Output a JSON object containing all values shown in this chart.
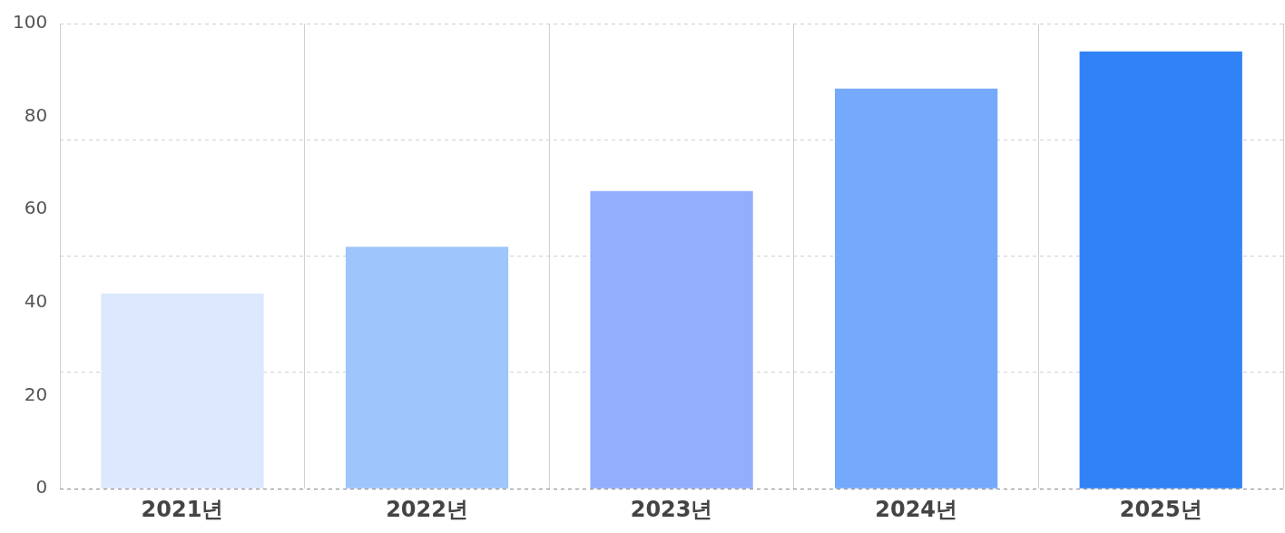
{
  "chart_data": {
    "type": "bar",
    "categories": [
      "2021년",
      "2022년",
      "2023년",
      "2024년",
      "2025년"
    ],
    "values": [
      42,
      52,
      64,
      86,
      94
    ],
    "colors": [
      "#dbe8fd",
      "#9ec5fc",
      "#93aefc",
      "#74a9fc",
      "#3182f6"
    ],
    "ylim": [
      0,
      100
    ],
    "yticks": [
      0,
      20,
      {
        "value": 25,
        "label": null
      },
      40,
      {
        "value": 50,
        "label": null
      },
      60,
      {
        "value": 75,
        "label": null
      },
      80,
      100
    ],
    "grid": true
  }
}
